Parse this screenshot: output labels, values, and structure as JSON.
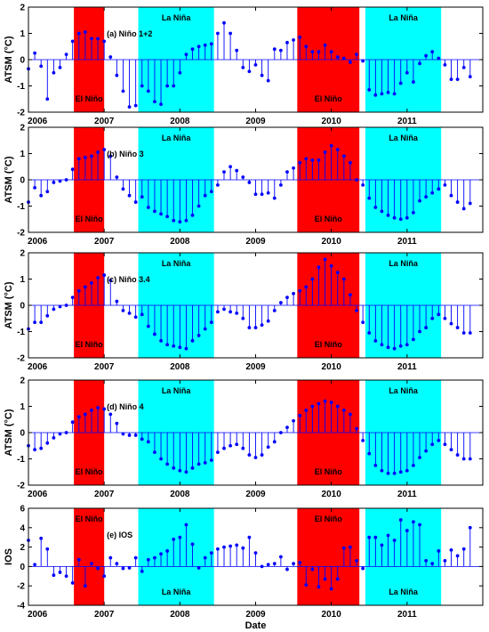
{
  "chart_data": [
    {
      "type": "stem",
      "title": "(a) Niño 1+2",
      "ylabel": "ATSM (°C)",
      "xlabel": "",
      "ylim": [
        -2,
        2
      ],
      "yticks": [
        -2,
        -1,
        0,
        1,
        2
      ],
      "xlim": [
        2006,
        2012
      ],
      "xticks": [
        "2006",
        "2007",
        "2008",
        "2009",
        "2010",
        "2011"
      ],
      "values": [
        -0.35,
        0.25,
        -0.25,
        -1.5,
        -0.5,
        -0.3,
        0.2,
        0.7,
        1.0,
        1.05,
        0.8,
        0.8,
        0.7,
        0.1,
        -0.6,
        -1.2,
        -1.8,
        -1.75,
        -1.0,
        -1.2,
        -1.6,
        -1.7,
        -1.0,
        -1.0,
        -0.5,
        0.2,
        0.4,
        0.5,
        0.55,
        0.6,
        1.0,
        1.4,
        1.0,
        0.35,
        -0.3,
        -0.45,
        -0.2,
        -0.6,
        -0.8,
        0.4,
        0.35,
        0.65,
        0.75,
        0.85,
        0.5,
        0.3,
        0.3,
        0.55,
        0.3,
        0.1,
        0.05,
        -0.1,
        0.2,
        -0.05,
        -1.15,
        -1.35,
        -1.3,
        -1.25,
        -1.3,
        -0.9,
        -0.5,
        -0.85,
        -0.15,
        0.15,
        0.3,
        0.05,
        -0.2,
        -0.75,
        -0.75,
        -0.3,
        -0.65
      ],
      "bands": [
        {
          "name": "El Niño",
          "color": "#ff0000",
          "from": 2006.6,
          "to": 2007.0,
          "label_pos": "bottom"
        },
        {
          "name": "La Niña",
          "color": "#00ffff",
          "from": 2007.45,
          "to": 2008.45,
          "label_pos": "top"
        },
        {
          "name": "El Niño",
          "color": "#ff0000",
          "from": 2009.55,
          "to": 2010.37,
          "label_pos": "bottom"
        },
        {
          "name": "La Niña",
          "color": "#00ffff",
          "from": 2010.45,
          "to": 2011.45,
          "label_pos": "top"
        }
      ]
    },
    {
      "type": "stem",
      "title": "(b) Niño 3",
      "ylabel": "ATSM (°C)",
      "xlabel": "",
      "ylim": [
        -2,
        2
      ],
      "yticks": [
        -2,
        -1,
        0,
        1,
        2
      ],
      "xlim": [
        2006,
        2012
      ],
      "xticks": [
        "2006",
        "2007",
        "2008",
        "2009",
        "2010",
        "2011"
      ],
      "values": [
        -0.85,
        -0.3,
        -0.6,
        -0.45,
        -0.1,
        -0.05,
        0.0,
        0.4,
        0.8,
        0.85,
        0.9,
        1.05,
        1.15,
        0.9,
        0.1,
        -0.35,
        -0.6,
        -0.85,
        -0.65,
        -1.05,
        -1.2,
        -1.3,
        -1.4,
        -1.55,
        -1.6,
        -1.55,
        -1.35,
        -1.0,
        -0.6,
        -0.45,
        -0.2,
        0.3,
        0.5,
        0.35,
        0.1,
        -0.1,
        -0.55,
        -0.55,
        -0.5,
        -0.7,
        -0.2,
        0.3,
        0.45,
        0.65,
        0.8,
        0.75,
        0.75,
        1.05,
        1.3,
        1.15,
        0.9,
        0.65,
        0.0,
        -0.2,
        -0.7,
        -1.05,
        -1.2,
        -1.35,
        -1.45,
        -1.5,
        -1.45,
        -1.25,
        -0.8,
        -0.65,
        -0.5,
        -0.35,
        -0.2,
        -0.6,
        -0.85,
        -1.1,
        -0.9
      ],
      "bands": [
        {
          "name": "El Niño",
          "color": "#ff0000",
          "from": 2006.6,
          "to": 2007.0,
          "label_pos": "bottom"
        },
        {
          "name": "La Niña",
          "color": "#00ffff",
          "from": 2007.45,
          "to": 2008.45,
          "label_pos": "top"
        },
        {
          "name": "El Niño",
          "color": "#ff0000",
          "from": 2009.55,
          "to": 2010.37,
          "label_pos": "bottom"
        },
        {
          "name": "La Niña",
          "color": "#00ffff",
          "from": 2010.45,
          "to": 2011.45,
          "label_pos": "top"
        }
      ]
    },
    {
      "type": "stem",
      "title": "(c) Niño 3.4",
      "ylabel": "ATSM (°C)",
      "xlabel": "",
      "ylim": [
        -2,
        2
      ],
      "yticks": [
        -2,
        -1,
        0,
        1,
        2
      ],
      "xlim": [
        2006,
        2012
      ],
      "xticks": [
        "2006",
        "2007",
        "2008",
        "2009",
        "2010",
        "2011"
      ],
      "values": [
        -0.9,
        -0.65,
        -0.65,
        -0.4,
        -0.15,
        -0.05,
        0.0,
        0.3,
        0.55,
        0.7,
        0.85,
        1.05,
        1.15,
        0.95,
        0.15,
        -0.2,
        -0.3,
        -0.45,
        -0.35,
        -0.8,
        -1.1,
        -1.35,
        -1.5,
        -1.55,
        -1.6,
        -1.65,
        -1.35,
        -1.15,
        -0.9,
        -0.65,
        -0.25,
        -0.15,
        -0.25,
        -0.3,
        -0.5,
        -0.85,
        -0.85,
        -0.75,
        -0.6,
        -0.2,
        0.1,
        0.3,
        0.45,
        0.55,
        0.7,
        1.0,
        1.45,
        1.75,
        1.5,
        1.25,
        1.0,
        0.4,
        -0.2,
        -0.65,
        -1.05,
        -1.35,
        -1.5,
        -1.6,
        -1.65,
        -1.55,
        -1.5,
        -1.3,
        -1.0,
        -0.85,
        -0.5,
        -0.35,
        -0.5,
        -0.7,
        -0.85,
        -1.05,
        -1.05
      ],
      "bands": [
        {
          "name": "El Niño",
          "color": "#ff0000",
          "from": 2006.6,
          "to": 2007.0,
          "label_pos": "bottom"
        },
        {
          "name": "La Niña",
          "color": "#00ffff",
          "from": 2007.45,
          "to": 2008.45,
          "label_pos": "top"
        },
        {
          "name": "El Niño",
          "color": "#ff0000",
          "from": 2009.55,
          "to": 2010.37,
          "label_pos": "bottom"
        },
        {
          "name": "La Niña",
          "color": "#00ffff",
          "from": 2010.45,
          "to": 2011.45,
          "label_pos": "top"
        }
      ]
    },
    {
      "type": "stem",
      "title": "(d) Niño 4",
      "ylabel": "ATSM (°C)",
      "xlabel": "",
      "ylim": [
        -2,
        2
      ],
      "yticks": [
        -2,
        -1,
        0,
        1,
        2
      ],
      "xlim": [
        2006,
        2012
      ],
      "xticks": [
        "2006",
        "2007",
        "2008",
        "2009",
        "2010",
        "2011"
      ],
      "values": [
        -0.5,
        -0.65,
        -0.6,
        -0.4,
        -0.2,
        -0.05,
        0.0,
        0.4,
        0.6,
        0.7,
        0.85,
        0.95,
        0.9,
        0.7,
        0.35,
        -0.05,
        -0.1,
        -0.1,
        -0.25,
        -0.35,
        -0.75,
        -1.0,
        -1.2,
        -1.35,
        -1.45,
        -1.5,
        -1.35,
        -1.2,
        -1.15,
        -1.05,
        -0.75,
        -0.6,
        -0.5,
        -0.45,
        -0.6,
        -0.85,
        -0.95,
        -0.85,
        -0.55,
        -0.35,
        0.0,
        0.2,
        0.45,
        0.65,
        0.85,
        1.0,
        1.1,
        1.2,
        1.15,
        1.0,
        0.85,
        0.7,
        0.15,
        -0.3,
        -0.8,
        -1.25,
        -1.45,
        -1.55,
        -1.55,
        -1.5,
        -1.45,
        -1.25,
        -0.95,
        -0.7,
        -0.45,
        -0.3,
        -0.45,
        -0.65,
        -0.85,
        -1.0,
        -1.0
      ],
      "bands": [
        {
          "name": "El Niño",
          "color": "#ff0000",
          "from": 2006.6,
          "to": 2007.0,
          "label_pos": "bottom"
        },
        {
          "name": "La Niña",
          "color": "#00ffff",
          "from": 2007.45,
          "to": 2008.45,
          "label_pos": "top"
        },
        {
          "name": "El Niño",
          "color": "#ff0000",
          "from": 2009.55,
          "to": 2010.37,
          "label_pos": "bottom"
        },
        {
          "name": "La Niña",
          "color": "#00ffff",
          "from": 2010.45,
          "to": 2011.45,
          "label_pos": "top"
        }
      ]
    },
    {
      "type": "stem",
      "title": "(e) IOS",
      "ylabel": "IOS",
      "xlabel": "Date",
      "ylim": [
        -4,
        6
      ],
      "yticks": [
        -4,
        -2,
        0,
        2,
        4,
        6
      ],
      "xlim": [
        2006,
        2012
      ],
      "xticks": [
        "2006",
        "2007",
        "2008",
        "2009",
        "2010",
        "2011"
      ],
      "values": [
        2.7,
        0.2,
        2.9,
        1.8,
        -0.9,
        -0.6,
        -1.0,
        -1.7,
        0.7,
        -2.0,
        0.3,
        -0.2,
        -1.0,
        0.9,
        0.3,
        -0.2,
        -0.15,
        0.9,
        -0.5,
        0.7,
        0.9,
        1.3,
        1.6,
        2.8,
        3.0,
        4.3,
        2.3,
        -0.15,
        0.9,
        1.4,
        1.8,
        2.0,
        2.1,
        2.2,
        1.9,
        3.0,
        1.4,
        0.0,
        0.2,
        0.3,
        1.0,
        -0.3,
        0.3,
        0.4,
        -1.9,
        -0.3,
        -2.1,
        -1.3,
        -2.3,
        -1.3,
        1.9,
        2.0,
        0.6,
        -0.2,
        3.0,
        3.0,
        2.2,
        3.2,
        2.7,
        4.8,
        3.7,
        4.6,
        4.3,
        0.6,
        0.3,
        1.6,
        0.6,
        1.7,
        1.1,
        1.8,
        4.0
      ],
      "bands": [
        {
          "name": "El Niño",
          "color": "#ff0000",
          "from": 2006.6,
          "to": 2007.0,
          "label_pos": "top"
        },
        {
          "name": "La Niña",
          "color": "#00ffff",
          "from": 2007.45,
          "to": 2008.45,
          "label_pos": "bottom"
        },
        {
          "name": "El Niño",
          "color": "#ff0000",
          "from": 2009.55,
          "to": 2010.37,
          "label_pos": "top"
        },
        {
          "name": "La Niña",
          "color": "#00ffff",
          "from": 2010.45,
          "to": 2011.45,
          "label_pos": "bottom"
        }
      ]
    }
  ],
  "series_color": "#0000ff"
}
